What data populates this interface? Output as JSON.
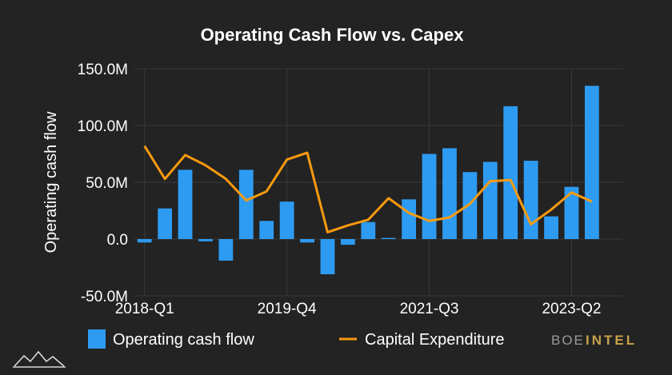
{
  "chart_data": {
    "type": "bar",
    "title": "Operating Cash Flow vs. Capex",
    "xlabel": "",
    "ylabel": "Operating cash flow",
    "ylim": [
      -50,
      150
    ],
    "yticks": [
      "-50.0M",
      "0.0",
      "50.0M",
      "100.0M",
      "150.0M"
    ],
    "ytick_values": [
      -50,
      0,
      50,
      100,
      150
    ],
    "grid": true,
    "legend_position": "bottom",
    "categories": [
      "2018-Q1",
      "2018-Q2",
      "2018-Q3",
      "2018-Q4",
      "2019-Q1",
      "2019-Q2",
      "2019-Q3",
      "2019-Q4",
      "2020-Q1",
      "2020-Q2",
      "2020-Q3",
      "2020-Q4",
      "2021-Q1",
      "2021-Q2",
      "2021-Q3",
      "2021-Q4",
      "2022-Q1",
      "2022-Q2",
      "2022-Q3",
      "2022-Q4",
      "2023-Q1",
      "2023-Q2",
      "2023-Q3",
      "2023-Q4"
    ],
    "xtick_labels": [
      "2018-Q1",
      "2019-Q4",
      "2021-Q3",
      "2023-Q2"
    ],
    "xtick_indices": [
      0,
      7,
      14,
      21
    ],
    "series": [
      {
        "name": "Operating cash flow",
        "kind": "bar",
        "color": "#2e9bf2",
        "values": [
          -3,
          27,
          61,
          -2,
          -19,
          61,
          16,
          33,
          -3,
          -31,
          -5,
          15,
          1,
          35,
          75,
          80,
          59,
          68,
          117,
          69,
          20,
          46,
          135,
          0
        ]
      },
      {
        "name": "Capital Expenditure",
        "kind": "line",
        "color": "#f79a0f",
        "values": [
          82,
          53,
          74,
          65,
          53,
          34,
          42,
          70,
          76,
          6,
          12,
          17,
          36,
          23,
          16,
          19,
          31,
          51,
          52,
          13,
          26,
          41,
          33,
          null
        ]
      }
    ]
  },
  "legend": {
    "bar_label": "Operating cash flow",
    "line_label": "Capital Expenditure"
  },
  "brand": {
    "part1": "BOE",
    "part2": "INTEL"
  }
}
